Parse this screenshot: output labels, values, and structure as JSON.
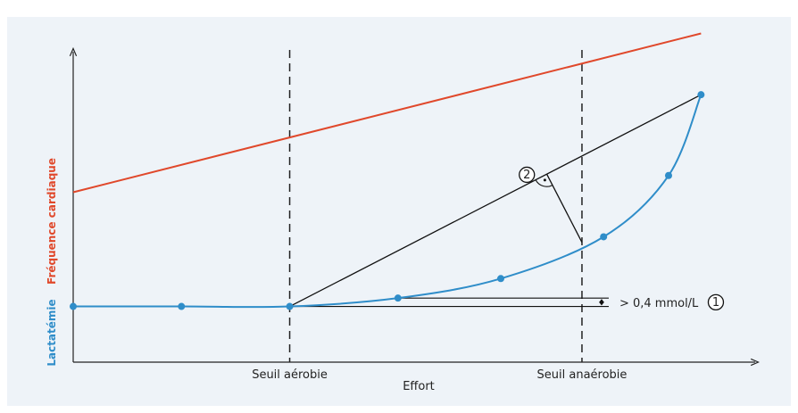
{
  "chart_data": {
    "type": "line",
    "title": "",
    "xlabel": "Effort",
    "ylabel_top": "Fréquence cardiaque",
    "ylabel_bottom": "Lactatémie",
    "x_thresholds": [
      {
        "name": "Seuil aérobie",
        "x": 2
      },
      {
        "name": "Seuil anaérobie",
        "x": 4.7
      }
    ],
    "series": [
      {
        "name": "Fréquence cardiaque",
        "color": "#e0482b",
        "x": [
          0,
          5.8
        ],
        "y": [
          6.1,
          11.8
        ]
      },
      {
        "name": "Lactatémie",
        "color": "#2f8dc9",
        "x": [
          0,
          1,
          2,
          3,
          3.95,
          4.9,
          5.5,
          5.8
        ],
        "y": [
          2.0,
          2.0,
          2.0,
          2.3,
          3.0,
          4.5,
          6.7,
          9.6
        ]
      }
    ],
    "tangent_line": {
      "from": [
        2,
        2.0
      ],
      "to": [
        5.8,
        9.6
      ]
    },
    "annotations": [
      {
        "id": "1",
        "label": "> 0,4 mmol/L"
      },
      {
        "id": "2",
        "label": ""
      }
    ],
    "xlim": [
      0,
      6.3
    ],
    "ylim": [
      0,
      13
    ]
  }
}
